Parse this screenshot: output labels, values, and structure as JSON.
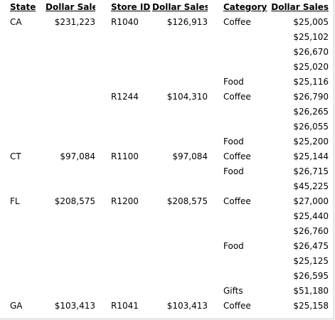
{
  "report": {
    "headers": [
      "State",
      "Dollar Sales",
      "Store ID",
      "Dollar Sales",
      "Category",
      "Dollar Sales"
    ],
    "rows": [
      [
        "CA",
        "$231,223",
        "R1040",
        "$126,913",
        "Coffee",
        "$25,005"
      ],
      [
        "",
        "",
        "",
        "",
        "",
        "$25,102"
      ],
      [
        "",
        "",
        "",
        "",
        "",
        "$26,670"
      ],
      [
        "",
        "",
        "",
        "",
        "",
        "$25,020"
      ],
      [
        "",
        "",
        "",
        "",
        "Food",
        "$25,116"
      ],
      [
        "",
        "",
        "R1244",
        "$104,310",
        "Coffee",
        "$26,790"
      ],
      [
        "",
        "",
        "",
        "",
        "",
        "$26,265"
      ],
      [
        "",
        "",
        "",
        "",
        "",
        "$26,055"
      ],
      [
        "",
        "",
        "",
        "",
        "Food",
        "$25,200"
      ],
      [
        "CT",
        "$97,084",
        "R1100",
        "$97,084",
        "Coffee",
        "$25,144"
      ],
      [
        "",
        "",
        "",
        "",
        "Food",
        "$26,715"
      ],
      [
        "",
        "",
        "",
        "",
        "",
        "$45,225"
      ],
      [
        "FL",
        "$208,575",
        "R1200",
        "$208,575",
        "Coffee",
        "$27,000"
      ],
      [
        "",
        "",
        "",
        "",
        "",
        "$25,440"
      ],
      [
        "",
        "",
        "",
        "",
        "",
        "$26,760"
      ],
      [
        "",
        "",
        "",
        "",
        "Food",
        "$26,475"
      ],
      [
        "",
        "",
        "",
        "",
        "",
        "$25,125"
      ],
      [
        "",
        "",
        "",
        "",
        "",
        "$26,595"
      ],
      [
        "",
        "",
        "",
        "",
        "Gifts",
        "$51,180"
      ],
      [
        "GA",
        "$103,413",
        "R1041",
        "$103,413",
        "Coffee",
        "$25,158"
      ]
    ]
  }
}
